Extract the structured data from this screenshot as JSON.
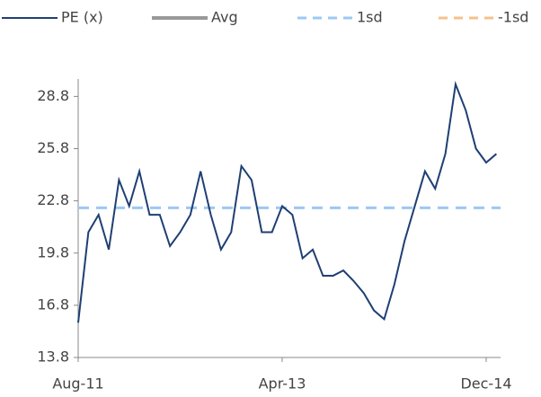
{
  "chart_data": {
    "type": "line",
    "categories": [
      "Aug-11",
      null,
      null,
      null,
      null,
      null,
      null,
      null,
      null,
      null,
      null,
      null,
      null,
      null,
      null,
      null,
      null,
      null,
      null,
      null,
      "Apr-13",
      null,
      null,
      null,
      null,
      null,
      null,
      null,
      null,
      null,
      null,
      null,
      null,
      null,
      null,
      null,
      null,
      null,
      null,
      null,
      "Dec-14",
      null
    ],
    "series": [
      {
        "name": "PE (x)",
        "color": "#1f3f73",
        "values": [
          15.8,
          21,
          22,
          20,
          24,
          22.5,
          24.5,
          22,
          22,
          20.2,
          21,
          22,
          24.5,
          22,
          20,
          21,
          24.8,
          24,
          21,
          21,
          22.5,
          22,
          19.5,
          20,
          18.5,
          18.5,
          18.8,
          18.2,
          17.5,
          16.5,
          16,
          18,
          20.5,
          22.5,
          24.5,
          23.5,
          25.5,
          29.5,
          28,
          25.8,
          25,
          25.5
        ]
      }
    ],
    "reference_lines": [
      {
        "name": "Avg",
        "color": "#999999",
        "value": null
      },
      {
        "name": "1sd",
        "color": "#9dc8f5",
        "value": 22.4
      },
      {
        "name": "-1sd",
        "color": "#f7c08a",
        "value": null
      }
    ],
    "ylim": [
      13.8,
      29.8
    ],
    "yticks": [
      13.8,
      16.8,
      19.8,
      22.8,
      25.8,
      28.8
    ]
  }
}
